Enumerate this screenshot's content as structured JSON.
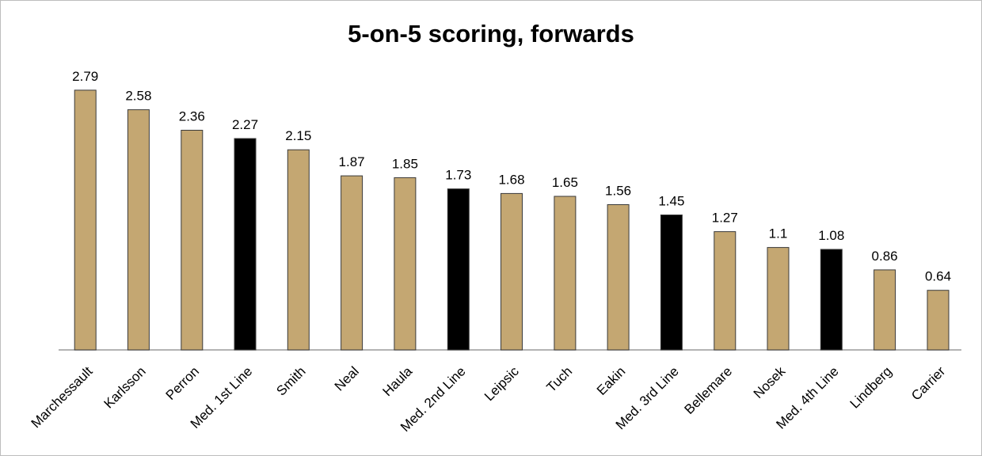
{
  "chart_data": {
    "type": "bar",
    "title": "5-on-5 scoring, forwards",
    "xlabel": "",
    "ylabel": "",
    "ylim": [
      0,
      2.8
    ],
    "grid": false,
    "legend": "none",
    "categories": [
      "Marchessault",
      "Karlsson",
      "Perron",
      "Med. 1st Line",
      "Smith",
      "Neal",
      "Haula",
      "Med. 2nd Line",
      "Leipsic",
      "Tuch",
      "Eakin",
      "Med. 3rd Line",
      "Bellemare",
      "Nosek",
      "Med. 4th Line",
      "Lindberg",
      "Carrier"
    ],
    "values": [
      2.79,
      2.58,
      2.36,
      2.27,
      2.15,
      1.87,
      1.85,
      1.73,
      1.68,
      1.65,
      1.56,
      1.45,
      1.27,
      1.1,
      1.08,
      0.86,
      0.64
    ],
    "value_labels": [
      "2.79",
      "2.58",
      "2.36",
      "2.27",
      "2.15",
      "1.87",
      "1.85",
      "1.73",
      "1.68",
      "1.65",
      "1.56",
      "1.45",
      "1.27",
      "1.1",
      "1.08",
      "0.86",
      "0.64"
    ],
    "highlighted": [
      false,
      false,
      false,
      true,
      false,
      false,
      false,
      true,
      false,
      false,
      false,
      true,
      false,
      false,
      true,
      false,
      false
    ],
    "colors": {
      "player": "#c4a772",
      "median": "#000000",
      "stroke": "#3a3a3a",
      "axis": "#9a9a9a"
    }
  }
}
